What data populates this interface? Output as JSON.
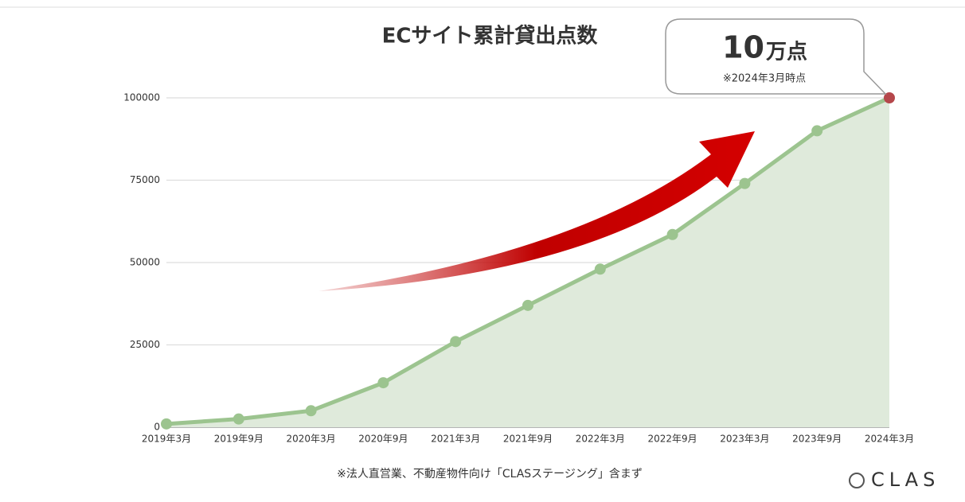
{
  "chart_data": {
    "type": "line",
    "title": "ECサイト累計貸出点数",
    "categories": [
      "2019年3月",
      "2019年9月",
      "2020年3月",
      "2020年9月",
      "2021年3月",
      "2021年9月",
      "2022年3月",
      "2022年9月",
      "2023年3月",
      "2023年9月",
      "2024年3月"
    ],
    "values": [
      1000,
      2500,
      5000,
      13500,
      26000,
      37000,
      48000,
      58500,
      74000,
      90000,
      100000
    ],
    "color": "#9cc48f",
    "area_color": "#dfeadb",
    "last_point_color": "#b5474b",
    "ylim": [
      0,
      100000
    ],
    "yticks": [
      0,
      25000,
      50000,
      75000,
      100000
    ],
    "grid": true,
    "callout": {
      "number": "10",
      "unit": "万点",
      "note": "※2024年3月時点"
    },
    "footnote": "※法人直営業、不動産物件向け「CLASステージング」含まず",
    "logo": "CLAS"
  }
}
